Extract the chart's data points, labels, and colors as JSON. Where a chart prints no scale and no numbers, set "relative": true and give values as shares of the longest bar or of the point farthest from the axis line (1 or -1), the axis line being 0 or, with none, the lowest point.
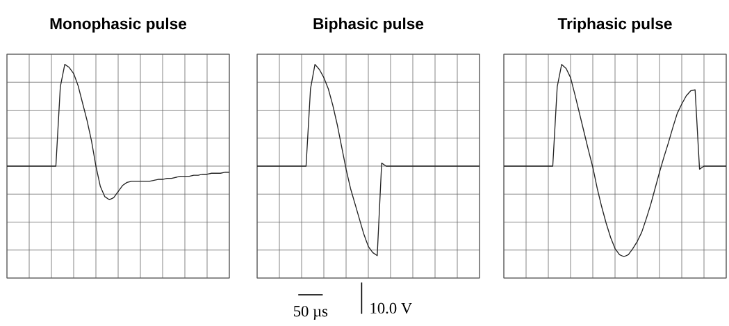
{
  "chart_data": [
    {
      "type": "line",
      "title": "Monophasic pulse",
      "relative": true,
      "grid": true,
      "tick_labels": false,
      "categories": [
        null,
        null,
        null,
        null,
        null,
        null,
        null,
        null,
        null,
        null,
        null,
        null,
        null,
        null,
        null,
        null,
        null,
        null,
        null,
        null,
        null,
        null,
        null,
        null,
        null,
        null,
        null,
        null,
        null,
        null,
        null,
        null,
        null,
        null,
        null,
        null,
        null,
        null,
        null,
        null,
        null,
        null,
        null,
        null,
        null,
        null,
        null,
        null,
        null,
        null,
        null
      ],
      "series": [
        {
          "color": "#222222",
          "values": [
            0,
            0,
            0,
            0,
            0,
            0,
            0,
            0,
            0,
            0,
            0,
            0,
            0.78,
            1.0,
            0.97,
            0.91,
            0.79,
            0.62,
            0.45,
            0.25,
            0,
            -0.2,
            -0.3,
            -0.33,
            -0.31,
            -0.25,
            -0.19,
            -0.16,
            -0.15,
            -0.15,
            -0.15,
            -0.15,
            -0.15,
            -0.14,
            -0.13,
            -0.13,
            -0.12,
            -0.12,
            -0.11,
            -0.1,
            -0.1,
            -0.1,
            -0.09,
            -0.09,
            -0.08,
            -0.08,
            -0.07,
            -0.07,
            -0.07,
            -0.06,
            -0.06
          ]
        }
      ]
    },
    {
      "type": "line",
      "title": "Biphasic pulse",
      "relative": true,
      "grid": true,
      "tick_labels": false,
      "categories": [
        null,
        null,
        null,
        null,
        null,
        null,
        null,
        null,
        null,
        null,
        null,
        null,
        null,
        null,
        null,
        null,
        null,
        null,
        null,
        null,
        null,
        null,
        null,
        null,
        null,
        null,
        null,
        null,
        null,
        null,
        null,
        null,
        null,
        null,
        null,
        null,
        null,
        null,
        null,
        null,
        null,
        null,
        null,
        null,
        null,
        null,
        null,
        null,
        null,
        null,
        null
      ],
      "annotations": [
        "50 µs",
        "10.0 V"
      ],
      "series": [
        {
          "color": "#222222",
          "values": [
            0,
            0,
            0,
            0,
            0,
            0,
            0,
            0,
            0,
            0,
            0,
            0,
            0.76,
            1.0,
            0.95,
            0.87,
            0.76,
            0.6,
            0.41,
            0.19,
            -0.03,
            -0.22,
            -0.37,
            -0.52,
            -0.67,
            -0.79,
            -0.85,
            -0.88,
            0.03,
            0,
            0,
            0,
            0,
            0,
            0,
            0,
            0,
            0,
            0,
            0,
            0,
            0,
            0,
            0,
            0,
            0,
            0,
            0,
            0,
            0,
            0
          ]
        }
      ]
    },
    {
      "type": "line",
      "title": "Triphasic pulse",
      "relative": true,
      "grid": true,
      "tick_labels": false,
      "categories": [
        null,
        null,
        null,
        null,
        null,
        null,
        null,
        null,
        null,
        null,
        null,
        null,
        null,
        null,
        null,
        null,
        null,
        null,
        null,
        null,
        null,
        null,
        null,
        null,
        null,
        null,
        null,
        null,
        null,
        null,
        null,
        null,
        null,
        null,
        null,
        null,
        null,
        null,
        null,
        null,
        null,
        null,
        null,
        null,
        null,
        null,
        null,
        null,
        null,
        null,
        null
      ],
      "series": [
        {
          "color": "#222222",
          "values": [
            0,
            0,
            0,
            0,
            0,
            0,
            0,
            0,
            0,
            0,
            0,
            0,
            0.78,
            1.0,
            0.96,
            0.87,
            0.7,
            0.52,
            0.34,
            0.16,
            -0.01,
            -0.22,
            -0.4,
            -0.56,
            -0.7,
            -0.81,
            -0.87,
            -0.89,
            -0.87,
            -0.81,
            -0.74,
            -0.65,
            -0.52,
            -0.38,
            -0.22,
            -0.06,
            0.09,
            0.23,
            0.38,
            0.52,
            0.61,
            0.69,
            0.74,
            0.75,
            -0.03,
            0,
            0,
            0,
            0,
            0,
            0
          ]
        }
      ]
    }
  ]
}
